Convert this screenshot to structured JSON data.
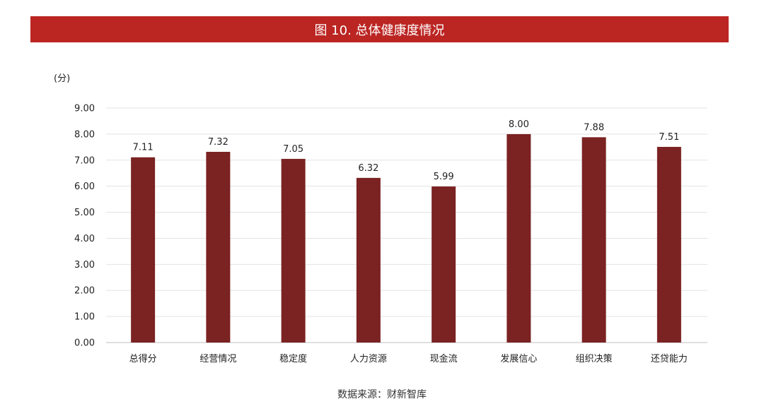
{
  "colors": {
    "title_bar": "#BB2522",
    "bar": "#7B2222",
    "grid": "#E3E3E3",
    "axis": "#BFBFBF"
  },
  "chart_data": {
    "type": "bar",
    "title": "图 10. 总体健康度情况",
    "ylabel": "(分)",
    "xlabel": "",
    "categories": [
      "总得分",
      "经营情况",
      "稳定度",
      "人力资源",
      "现金流",
      "发展信心",
      "组织决策",
      "还贷能力"
    ],
    "values": [
      7.11,
      7.32,
      7.05,
      6.32,
      5.99,
      8.0,
      7.88,
      7.51
    ],
    "data_labels": [
      "7.11",
      "7.32",
      "7.05",
      "6.32",
      "5.99",
      "8.00",
      "7.88",
      "7.51"
    ],
    "ylim": [
      0,
      9
    ],
    "yticks": [
      "0.00",
      "1.00",
      "2.00",
      "3.00",
      "4.00",
      "5.00",
      "6.00",
      "7.00",
      "8.00",
      "9.00"
    ],
    "grid": true,
    "legend": "none"
  },
  "source": "数据来源：财新智库"
}
